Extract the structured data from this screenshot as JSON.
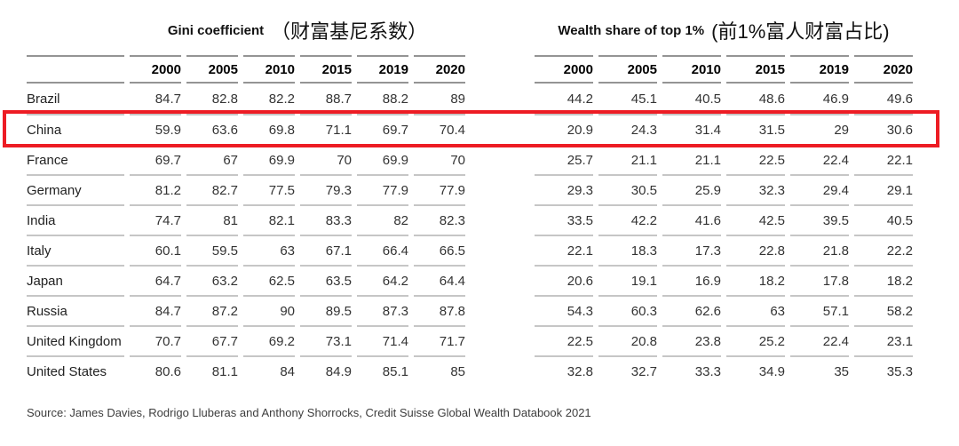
{
  "header": {
    "gini_en": "Gini coefficient",
    "gini_zh": "（财富基尼系数）",
    "wealth_en": "Wealth share of top 1%",
    "wealth_zh": "(前1%富人财富占比)"
  },
  "source": "Source: James Davies, Rodrigo Lluberas and Anthony Shorrocks, Credit Suisse Global Wealth Databook 2021",
  "highlight": {
    "row": "China",
    "color": "#ed1c24"
  },
  "chart_data": {
    "type": "table",
    "column_groups": [
      {
        "label": "Gini coefficient （财富基尼系数）",
        "years": [
          "2000",
          "2005",
          "2010",
          "2015",
          "2019",
          "2020"
        ]
      },
      {
        "label": "Wealth share of top 1% (前1%富人财富占比)",
        "years": [
          "2000",
          "2005",
          "2010",
          "2015",
          "2019",
          "2020"
        ]
      }
    ],
    "rows": [
      {
        "country": "Brazil",
        "gini": [
          84.7,
          82.8,
          82.2,
          88.7,
          88.2,
          89
        ],
        "wealth_share_top1": [
          44.2,
          45.1,
          40.5,
          48.6,
          46.9,
          49.6
        ]
      },
      {
        "country": "China",
        "gini": [
          59.9,
          63.6,
          69.8,
          71.1,
          69.7,
          70.4
        ],
        "wealth_share_top1": [
          20.9,
          24.3,
          31.4,
          31.5,
          29,
          30.6
        ]
      },
      {
        "country": "France",
        "gini": [
          69.7,
          67,
          69.9,
          70,
          69.9,
          70
        ],
        "wealth_share_top1": [
          25.7,
          21.1,
          21.1,
          22.5,
          22.4,
          22.1
        ]
      },
      {
        "country": "Germany",
        "gini": [
          81.2,
          82.7,
          77.5,
          79.3,
          77.9,
          77.9
        ],
        "wealth_share_top1": [
          29.3,
          30.5,
          25.9,
          32.3,
          29.4,
          29.1
        ]
      },
      {
        "country": "India",
        "gini": [
          74.7,
          81,
          82.1,
          83.3,
          82,
          82.3
        ],
        "wealth_share_top1": [
          33.5,
          42.2,
          41.6,
          42.5,
          39.5,
          40.5
        ]
      },
      {
        "country": "Italy",
        "gini": [
          60.1,
          59.5,
          63,
          67.1,
          66.4,
          66.5
        ],
        "wealth_share_top1": [
          22.1,
          18.3,
          17.3,
          22.8,
          21.8,
          22.2
        ]
      },
      {
        "country": "Japan",
        "gini": [
          64.7,
          63.2,
          62.5,
          63.5,
          64.2,
          64.4
        ],
        "wealth_share_top1": [
          20.6,
          19.1,
          16.9,
          18.2,
          17.8,
          18.2
        ]
      },
      {
        "country": "Russia",
        "gini": [
          84.7,
          87.2,
          90,
          89.5,
          87.3,
          87.8
        ],
        "wealth_share_top1": [
          54.3,
          60.3,
          62.6,
          63,
          57.1,
          58.2
        ]
      },
      {
        "country": "United Kingdom",
        "gini": [
          70.7,
          67.7,
          69.2,
          73.1,
          71.4,
          71.7
        ],
        "wealth_share_top1": [
          22.5,
          20.8,
          23.8,
          25.2,
          22.4,
          23.1
        ]
      },
      {
        "country": "United States",
        "gini": [
          80.6,
          81.1,
          84,
          84.9,
          85.1,
          85
        ],
        "wealth_share_top1": [
          32.8,
          32.7,
          33.3,
          34.9,
          35,
          35.3
        ]
      }
    ],
    "highlighted_row": "China",
    "source": "Source: James Davies, Rodrigo Lluberas and Anthony Shorrocks, Credit Suisse Global Wealth Databook 2021"
  }
}
